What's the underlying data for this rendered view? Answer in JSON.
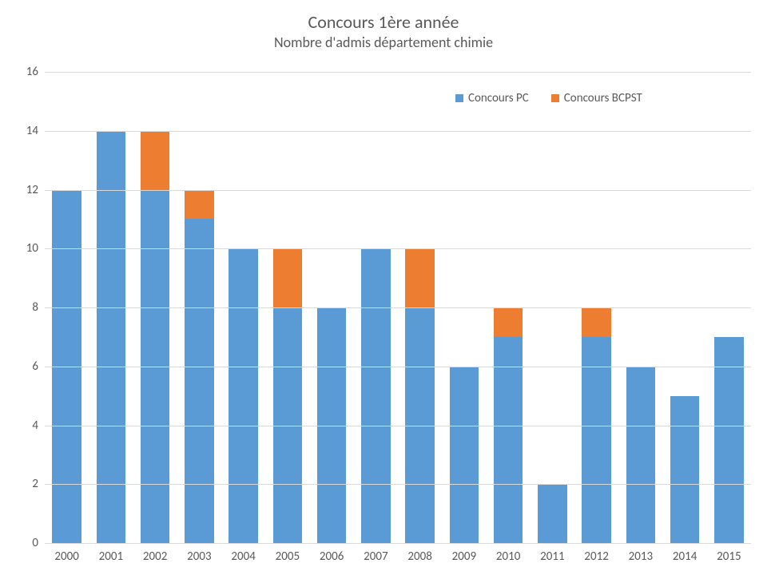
{
  "chart": {
    "type": "stacked-bar",
    "title": "Concours 1ère année",
    "subtitle": "Nombre d'admis département chimie",
    "title_fontsize": 22,
    "subtitle_fontsize": 18,
    "title_color": "#595959",
    "background_color": "#ffffff",
    "grid_color": "#d9d9d9",
    "axis_label_color": "#595959",
    "axis_label_fontsize": 15,
    "bar_width": 0.66,
    "ylim": [
      0,
      16
    ],
    "ytick_step": 2,
    "yticks": [
      0,
      2,
      4,
      6,
      8,
      10,
      12,
      14,
      16
    ],
    "categories": [
      "2000",
      "2001",
      "2002",
      "2003",
      "2004",
      "2005",
      "2006",
      "2007",
      "2008",
      "2009",
      "2010",
      "2011",
      "2012",
      "2013",
      "2014",
      "2015"
    ],
    "series": [
      {
        "name": "Concours PC",
        "color": "#5b9bd5",
        "values": [
          12,
          14,
          12,
          11,
          10,
          8,
          8,
          10,
          8,
          6,
          7,
          2,
          7,
          6,
          5,
          7
        ]
      },
      {
        "name": "Concours BCPST",
        "color": "#ed7d31",
        "values": [
          0,
          0,
          2,
          1,
          0,
          2,
          0,
          0,
          2,
          0,
          1,
          0,
          1,
          0,
          0,
          0
        ]
      }
    ],
    "legend": {
      "position": "top-right",
      "fontsize": 15
    }
  }
}
